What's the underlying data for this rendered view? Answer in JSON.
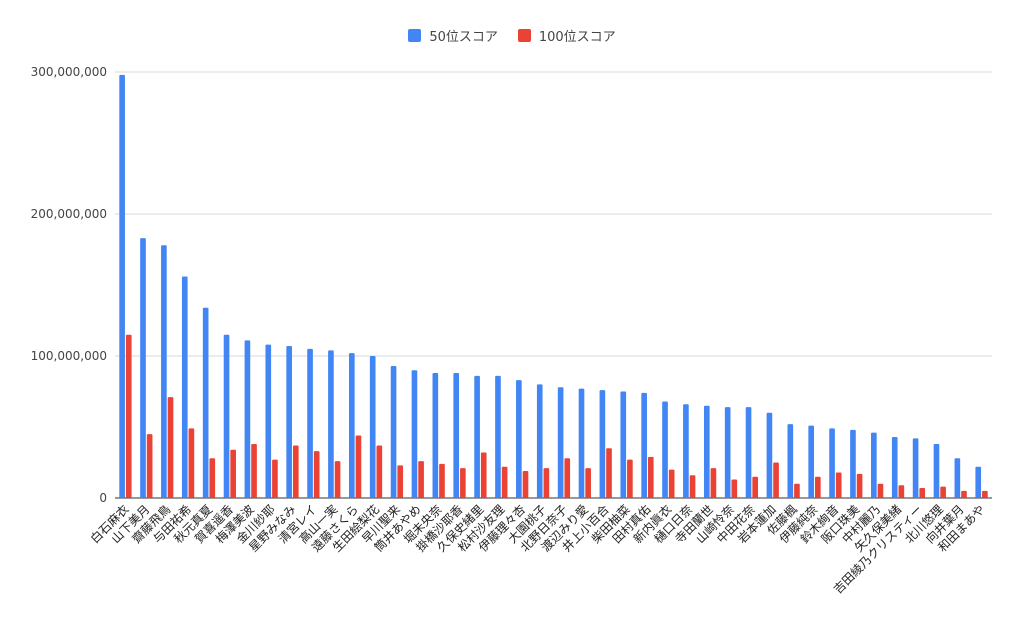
{
  "chart_data": {
    "type": "bar",
    "title": "",
    "xlabel": "",
    "ylabel": "",
    "ylim": [
      0,
      300000000
    ],
    "yticks": [
      0,
      100000000,
      200000000,
      300000000
    ],
    "ytick_labels": [
      "0",
      "100,000,000",
      "200,000,000",
      "300,000,000"
    ],
    "grid": true,
    "legend_position": "top",
    "categories": [
      "白石麻衣",
      "山下美月",
      "齋藤飛鳥",
      "与田祐希",
      "秋元真夏",
      "賀喜遥香",
      "梅澤美波",
      "金川紗耶",
      "星野みなみ",
      "清宮レイ",
      "高山一実",
      "遠藤さくら",
      "生田絵梨花",
      "早川聖来",
      "筒井あやめ",
      "堀未央奈",
      "掛橋沙耶香",
      "久保史緒里",
      "松村沙友理",
      "伊藤理々杏",
      "大園桃子",
      "北野日奈子",
      "渡辺みり愛",
      "井上小百合",
      "柴田柚菜",
      "田村真佑",
      "新内眞衣",
      "樋口日奈",
      "寺田蘭世",
      "山崎怜奈",
      "中田花奈",
      "岩本蓮加",
      "佐藤楓",
      "伊藤純奈",
      "鈴木絢音",
      "阪口珠美",
      "中村麗乃",
      "矢久保美緒",
      "吉田綾乃クリスティー",
      "北川悠理",
      "向井葉月",
      "和田まあや"
    ],
    "series": [
      {
        "name": "50位スコア",
        "color": "#4285f4",
        "values": [
          298000000,
          183000000,
          178000000,
          156000000,
          134000000,
          115000000,
          111000000,
          108000000,
          107000000,
          105000000,
          104000000,
          102000000,
          100000000,
          93000000,
          90000000,
          88000000,
          88000000,
          86000000,
          86000000,
          83000000,
          80000000,
          78000000,
          77000000,
          76000000,
          75000000,
          74000000,
          68000000,
          66000000,
          65000000,
          64000000,
          64000000,
          60000000,
          52000000,
          51000000,
          49000000,
          48000000,
          46000000,
          43000000,
          42000000,
          38000000,
          28000000,
          22000000
        ]
      },
      {
        "name": "100位スコア",
        "color": "#ea4335",
        "values": [
          115000000,
          45000000,
          71000000,
          49000000,
          28000000,
          34000000,
          38000000,
          27000000,
          37000000,
          33000000,
          26000000,
          44000000,
          37000000,
          23000000,
          26000000,
          24000000,
          21000000,
          32000000,
          22000000,
          19000000,
          21000000,
          28000000,
          21000000,
          35000000,
          27000000,
          29000000,
          20000000,
          16000000,
          21000000,
          13000000,
          15000000,
          25000000,
          10000000,
          15000000,
          18000000,
          17000000,
          10000000,
          9000000,
          7000000,
          8000000,
          5000000,
          5000000
        ]
      }
    ]
  }
}
